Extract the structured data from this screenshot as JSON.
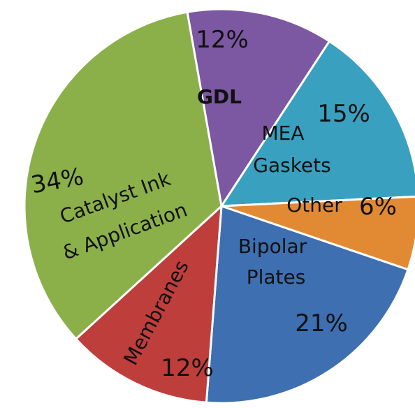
{
  "chart_data": {
    "type": "pie",
    "title": "",
    "slices": [
      {
        "name": "GDL",
        "value": 12,
        "value_label": "12%",
        "color": "#7B58A1"
      },
      {
        "name_lines": [
          "MEA",
          "Gaskets"
        ],
        "value": 15,
        "value_label": "15%",
        "color": "#3AA0BF"
      },
      {
        "name": "Other",
        "value": 6,
        "value_label": "6%",
        "color": "#E28A33"
      },
      {
        "name_lines": [
          "Bipolar",
          "Plates"
        ],
        "value": 21,
        "value_label": "21%",
        "color": "#3E6FB0"
      },
      {
        "name": "Membranes",
        "value": 12,
        "value_label": "12%",
        "color": "#BE3E3C"
      },
      {
        "name_lines": [
          "Catalyst Ink",
          "& Application"
        ],
        "value": 34,
        "value_label": "34%",
        "color": "#8BB04A"
      }
    ]
  }
}
